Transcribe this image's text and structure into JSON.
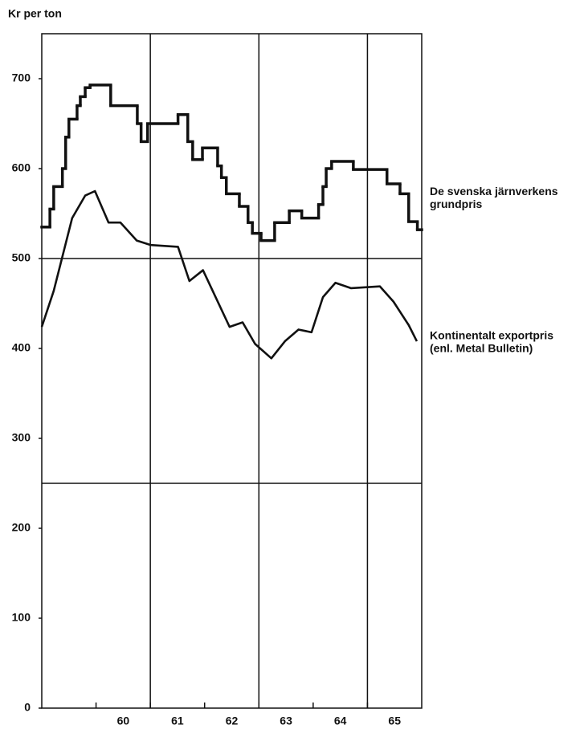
{
  "chart_data": {
    "type": "line",
    "y_label": "Kr per ton",
    "xlim": [
      1959,
      1966
    ],
    "ylim": [
      0,
      750
    ],
    "yticks": [
      0,
      100,
      200,
      300,
      400,
      500,
      600,
      700
    ],
    "xticks": [
      {
        "value": 1960,
        "label": "60"
      },
      {
        "value": 1961,
        "label": "61"
      },
      {
        "value": 1962,
        "label": "62"
      },
      {
        "value": 1963,
        "label": "63"
      },
      {
        "value": 1964,
        "label": "64"
      },
      {
        "value": 1965,
        "label": "65"
      }
    ],
    "vertical_lines": [
      1961,
      1963,
      1965
    ],
    "horizontal_lines": [
      250,
      500
    ],
    "series": [
      {
        "label": [
          "De svenska järnverkens",
          "grundpris"
        ],
        "color": "#111111",
        "step": true,
        "x": [
          1959.0,
          1959.15,
          1959.22,
          1959.38,
          1959.44,
          1959.5,
          1959.65,
          1959.71,
          1959.8,
          1959.89,
          1960.27,
          1960.76,
          1960.83,
          1960.95,
          1961.51,
          1961.69,
          1961.78,
          1961.96,
          1962.24,
          1962.31,
          1962.4,
          1962.64,
          1962.8,
          1962.88,
          1963.04,
          1963.29,
          1963.56,
          1963.79,
          1964.1,
          1964.18,
          1964.24,
          1964.34,
          1964.74,
          1965.36,
          1965.6,
          1965.76,
          1965.92
        ],
        "values": [
          535,
          555,
          580,
          600,
          635,
          655,
          670,
          680,
          690,
          693,
          670,
          650,
          630,
          650,
          660,
          630,
          610,
          623,
          603,
          590,
          572,
          558,
          540,
          528,
          520,
          540,
          553,
          545,
          560,
          580,
          600,
          608,
          599,
          583,
          572,
          541,
          532
        ]
      },
      {
        "label": [
          "Kontinentalt exportpris",
          "(enl. Metal Bulletin)"
        ],
        "color": "#111111",
        "step": false,
        "x": [
          1959.0,
          1959.22,
          1959.56,
          1959.8,
          1959.98,
          1960.23,
          1960.45,
          1960.75,
          1961.01,
          1961.51,
          1961.72,
          1961.97,
          1962.46,
          1962.7,
          1962.93,
          1963.23,
          1963.48,
          1963.73,
          1963.97,
          1964.18,
          1964.41,
          1964.7,
          1965.23,
          1965.48,
          1965.76,
          1965.91
        ],
        "values": [
          424,
          464,
          545,
          570,
          575,
          540,
          540,
          520,
          515,
          513,
          475,
          487,
          424,
          429,
          405,
          389,
          408,
          421,
          418,
          457,
          473,
          467,
          469,
          452,
          426,
          408
        ]
      }
    ]
  }
}
